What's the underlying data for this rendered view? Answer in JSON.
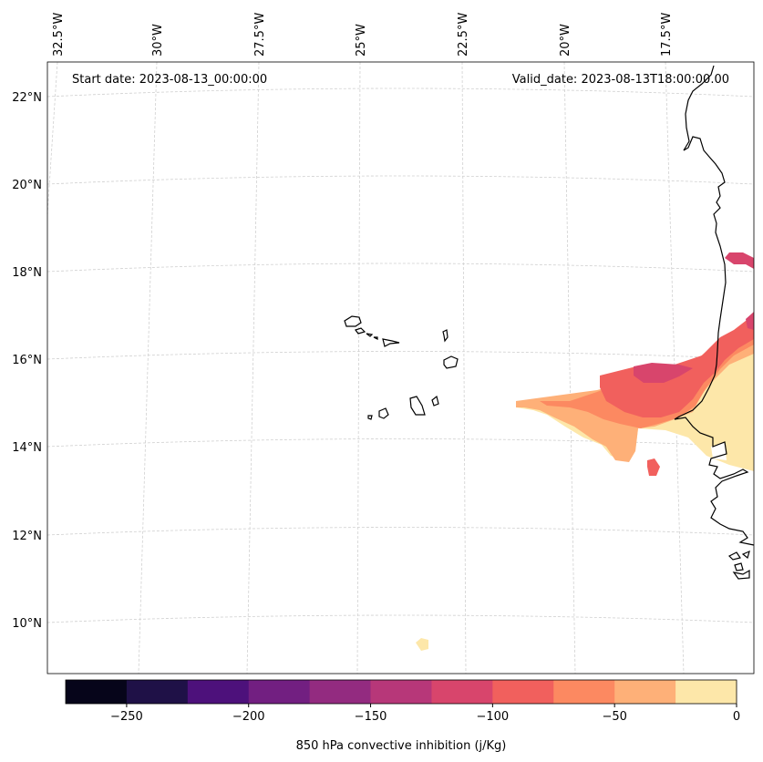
{
  "map": {
    "start_label": "Start date: 2023-08-13_00:00:00",
    "valid_label": "Valid_date: 2023-08-13T18:00:00.00",
    "lon_labels": [
      "32.5°W",
      "30°W",
      "27.5°W",
      "25°W",
      "22.5°W",
      "20°W",
      "17.5°W"
    ],
    "lat_labels": [
      "22°N",
      "20°N",
      "18°N",
      "16°N",
      "14°N",
      "12°N",
      "10°N"
    ]
  },
  "colorbar": {
    "label": "850 hPa convective inhibition (j/Kg)",
    "ticks": [
      "−250",
      "−200",
      "−150",
      "−100",
      "−50",
      "0"
    ],
    "range": [
      -275,
      0
    ],
    "colors": [
      "#06051a",
      "#1f1147",
      "#4d117b",
      "#721f81",
      "#932b80",
      "#b73779",
      "#d8456c",
      "#f1605d",
      "#fc8961",
      "#feb078",
      "#fde7a9"
    ]
  },
  "style": {
    "coast_color": "#000000",
    "grid_color": "#d0d0d0"
  }
}
